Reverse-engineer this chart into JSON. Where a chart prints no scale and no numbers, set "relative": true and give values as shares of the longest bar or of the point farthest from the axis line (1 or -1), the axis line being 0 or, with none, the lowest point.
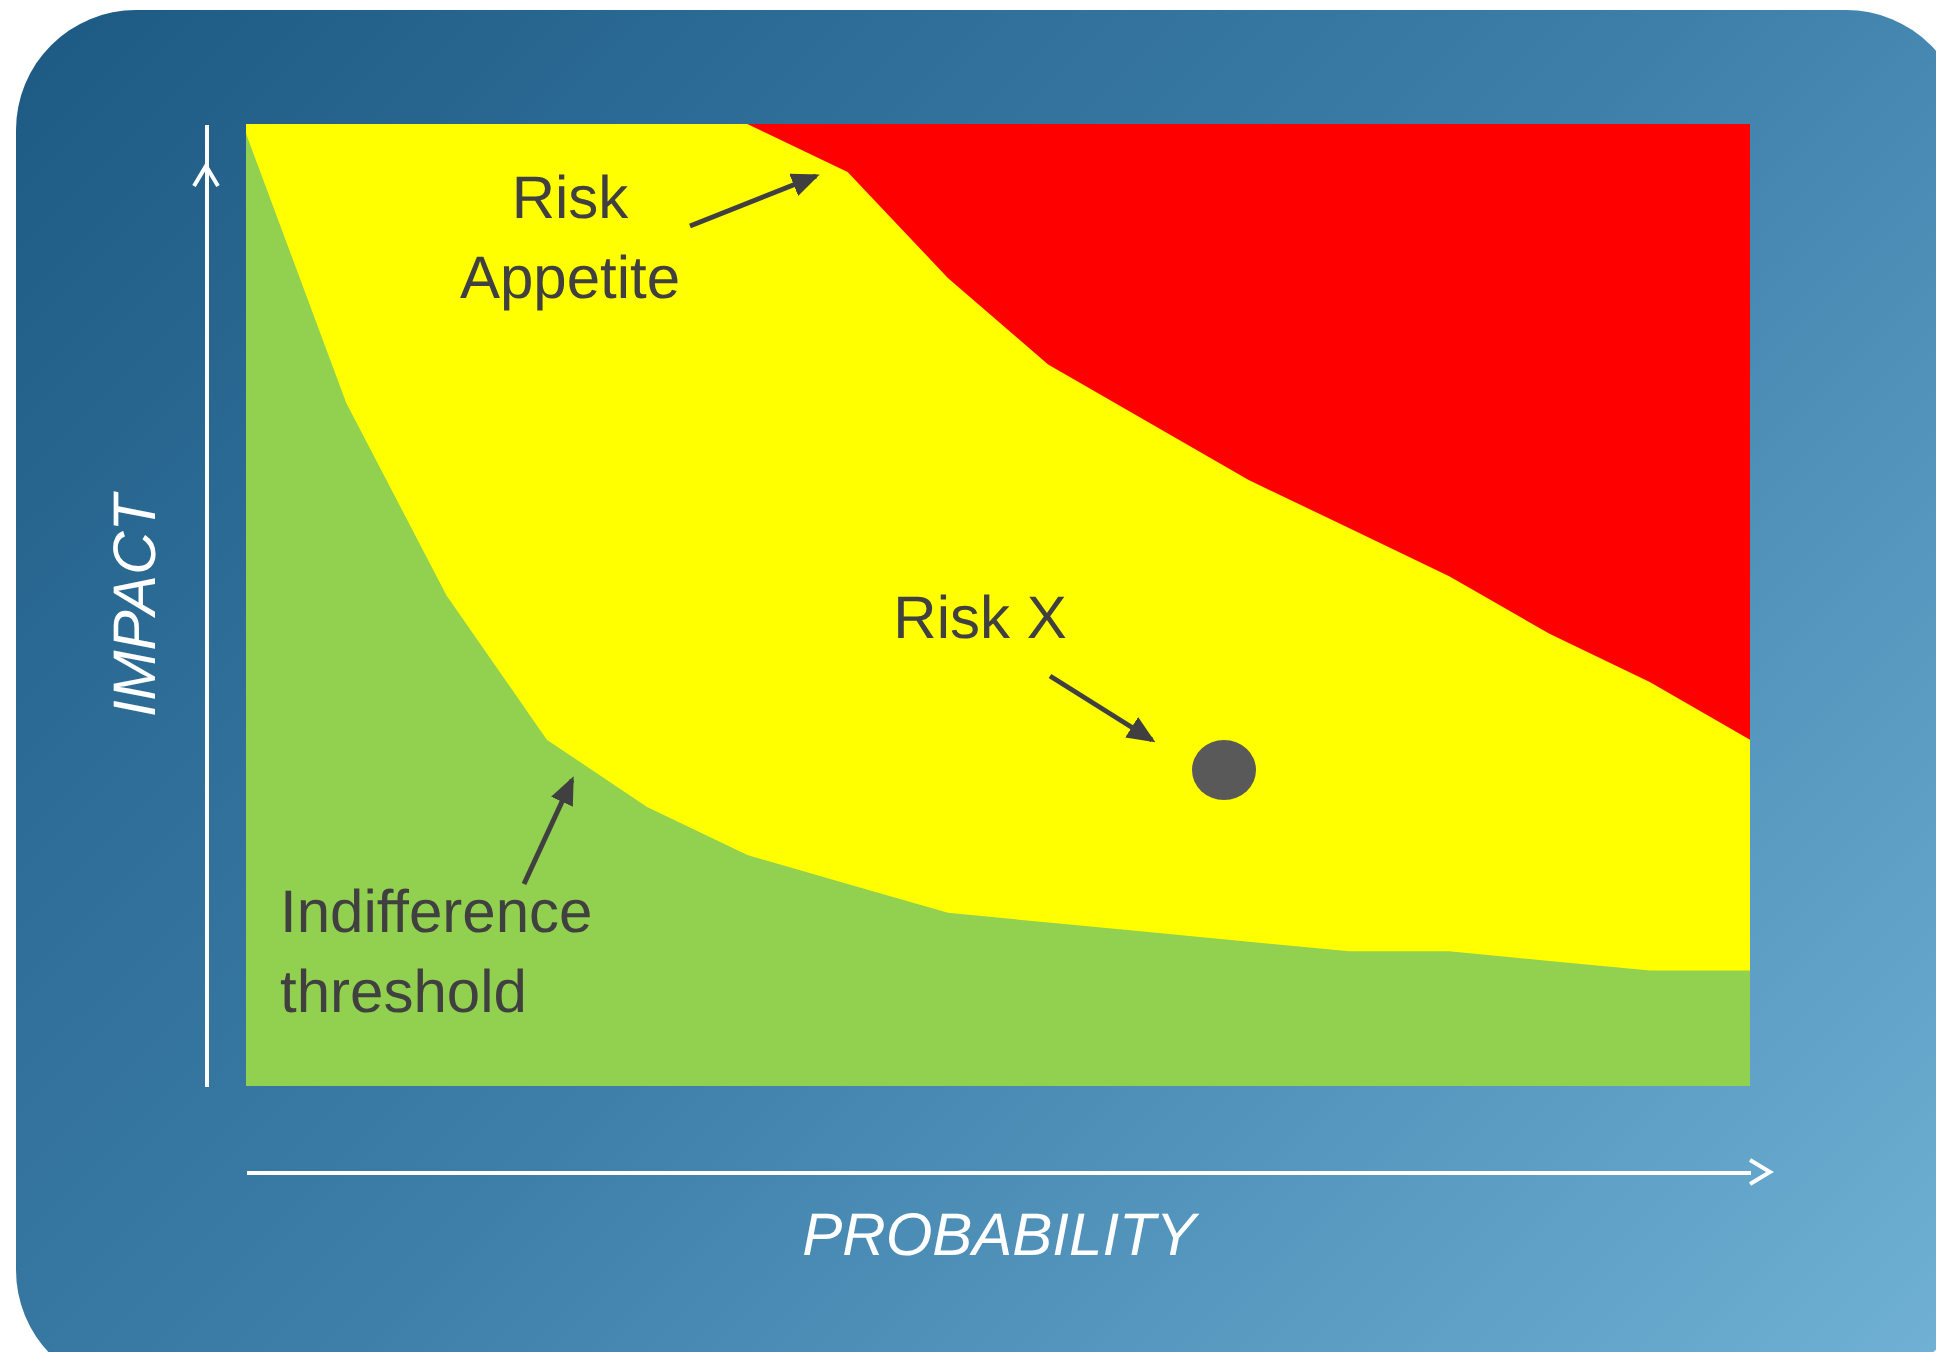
{
  "chart_data": {
    "type": "area",
    "relative": true,
    "xlabel": "PROBABILITY",
    "ylabel": "IMPACT",
    "categories": [
      null,
      null,
      null,
      null,
      null,
      null,
      null,
      null,
      null,
      null,
      null,
      null,
      null,
      null,
      null,
      null
    ],
    "series": [
      {
        "color": "#ffff00",
        "values": [
          1,
          1,
          1,
          1,
          1,
          1,
          0.95,
          0.84,
          0.75,
          0.69,
          0.63,
          0.58,
          0.53,
          0.47,
          0.42,
          0.36
        ]
      },
      {
        "color": "#92d050",
        "values": [
          0.99,
          0.71,
          0.51,
          0.36,
          0.29,
          0.24,
          0.21,
          0.18,
          0.17,
          0.16,
          0.15,
          0.14,
          0.14,
          0.13,
          0.12,
          0.12
        ]
      }
    ],
    "bands": [
      {
        "axis": "y",
        "from": 0,
        "to": 1,
        "color": "#ff0000"
      }
    ],
    "annotations": [
      "Risk Appetite",
      "Risk X",
      "Indifference threshold"
    ]
  }
}
